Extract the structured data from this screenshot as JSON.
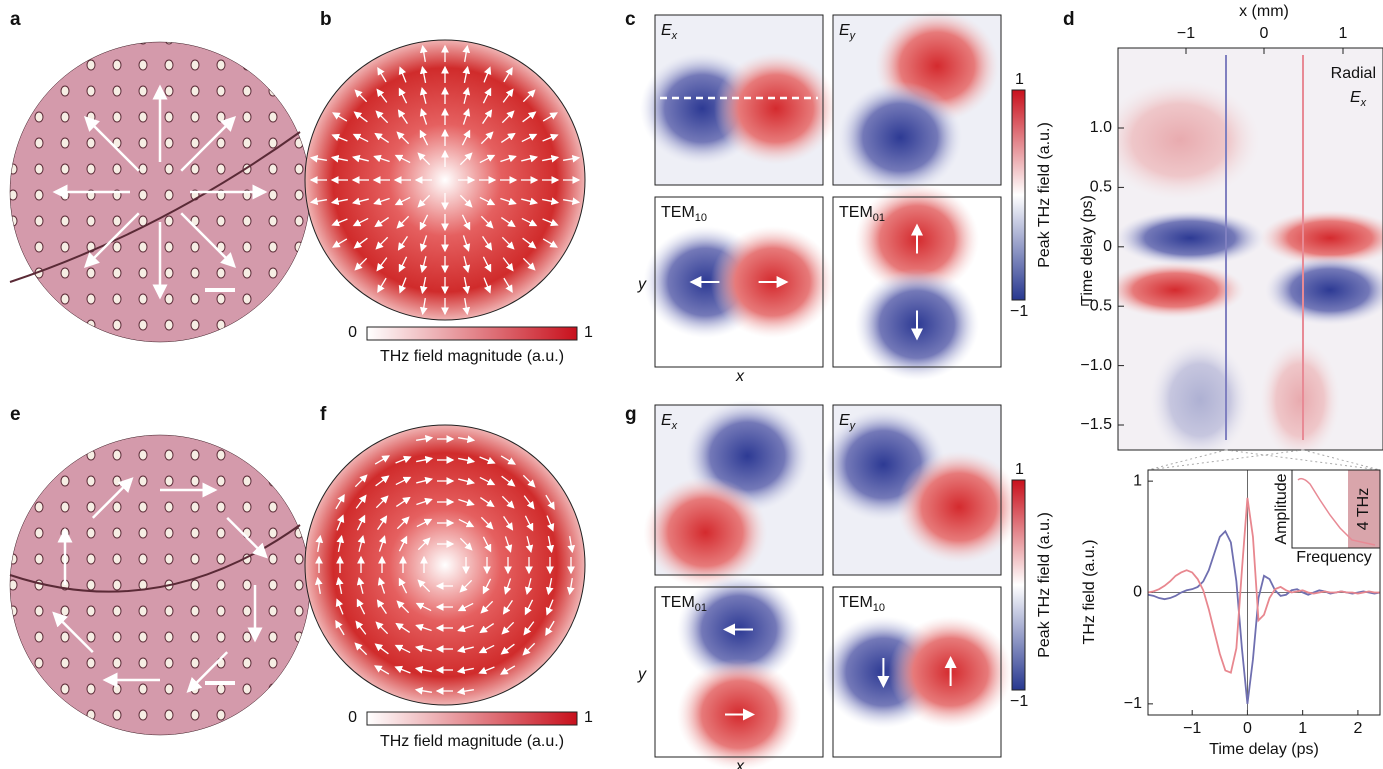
{
  "panel_labels": [
    "a",
    "b",
    "c",
    "d",
    "e",
    "f",
    "g"
  ],
  "magnitude_colorbar": {
    "min": "0",
    "max": "1",
    "label": "THz field magnitude (a.u.)"
  },
  "field_colorbar": {
    "max": "1",
    "min": "−1",
    "label": "Peak THz field (a.u.)"
  },
  "c_maps": [
    {
      "main": "E",
      "sub": "x"
    },
    {
      "main": "E",
      "sub": "y"
    },
    {
      "main": "TEM",
      "sub": "10"
    },
    {
      "main": "TEM",
      "sub": "01"
    }
  ],
  "g_maps": [
    {
      "main": "E",
      "sub": "x"
    },
    {
      "main": "E",
      "sub": "y"
    },
    {
      "main": "TEM",
      "sub": "01"
    },
    {
      "main": "TEM",
      "sub": "10"
    }
  ],
  "map_axes": {
    "x": "x",
    "y": "y"
  },
  "d_heatmap": {
    "x_axis_label": "x (mm)",
    "xticks": [
      "−1",
      "0",
      "1"
    ],
    "yticks": [
      "1.0",
      "0.5",
      "0",
      "−0.5",
      "−1.0",
      "−1.5"
    ],
    "y_axis_label": "Time delay (ps)",
    "annotation": {
      "line1": "Radial",
      "main": "E",
      "sub": "x"
    }
  },
  "chart_data": {
    "type": "line",
    "x": [
      -1.8,
      -1.7,
      -1.6,
      -1.5,
      -1.4,
      -1.3,
      -1.2,
      -1.1,
      -1.0,
      -0.9,
      -0.8,
      -0.7,
      -0.6,
      -0.5,
      -0.4,
      -0.3,
      -0.2,
      -0.1,
      0,
      0.1,
      0.2,
      0.3,
      0.4,
      0.5,
      0.6,
      0.7,
      0.8,
      0.9,
      1.0,
      1.1,
      1.2,
      1.3,
      1.4,
      1.5,
      1.6,
      1.7,
      1.8,
      1.9,
      2.0,
      2.1,
      2.2,
      2.3,
      2.4
    ],
    "series": [
      {
        "color": "#6f6fb0",
        "values": [
          -0.02,
          -0.03,
          -0.05,
          -0.06,
          -0.05,
          -0.03,
          0,
          0.02,
          0.03,
          0.05,
          0.1,
          0.2,
          0.35,
          0.5,
          0.55,
          0.45,
          0.1,
          -0.5,
          -1.0,
          -0.6,
          -0.05,
          0.15,
          0.12,
          0.02,
          -0.03,
          -0.02,
          0.02,
          0.03,
          0,
          -0.02,
          0,
          0.02,
          0.01,
          -0.01,
          0,
          0.01,
          0,
          -0.01,
          0,
          0.01,
          0,
          -0.01,
          0
        ]
      },
      {
        "color": "#e8878f",
        "values": [
          0,
          0.01,
          0.03,
          0.06,
          0.1,
          0.15,
          0.18,
          0.2,
          0.18,
          0.12,
          0.02,
          -0.15,
          -0.35,
          -0.55,
          -0.7,
          -0.72,
          -0.5,
          0.2,
          0.85,
          0.5,
          -0.25,
          -0.2,
          -0.05,
          0.03,
          0.05,
          0.02,
          0,
          0.01,
          0.02,
          0,
          -0.01,
          0,
          0.01,
          0,
          0,
          0.01,
          0,
          0,
          -0.01,
          0,
          0.01,
          0,
          0
        ]
      }
    ],
    "xlim": [
      -1.8,
      2.4
    ],
    "xticks": [
      {
        "value": -1,
        "label": "−1"
      },
      0,
      1,
      2
    ],
    "ylim": [
      -1.1,
      1.1
    ],
    "yticks": [
      {
        "value": -1,
        "label": "−1"
      },
      0,
      1
    ],
    "xlabel": "Time delay (ps)",
    "ylabel": "THz field (a.u.)",
    "inset": {
      "xlabel": "Frequency",
      "ylabel": "Amplitude",
      "annotation": "4 THz"
    }
  }
}
